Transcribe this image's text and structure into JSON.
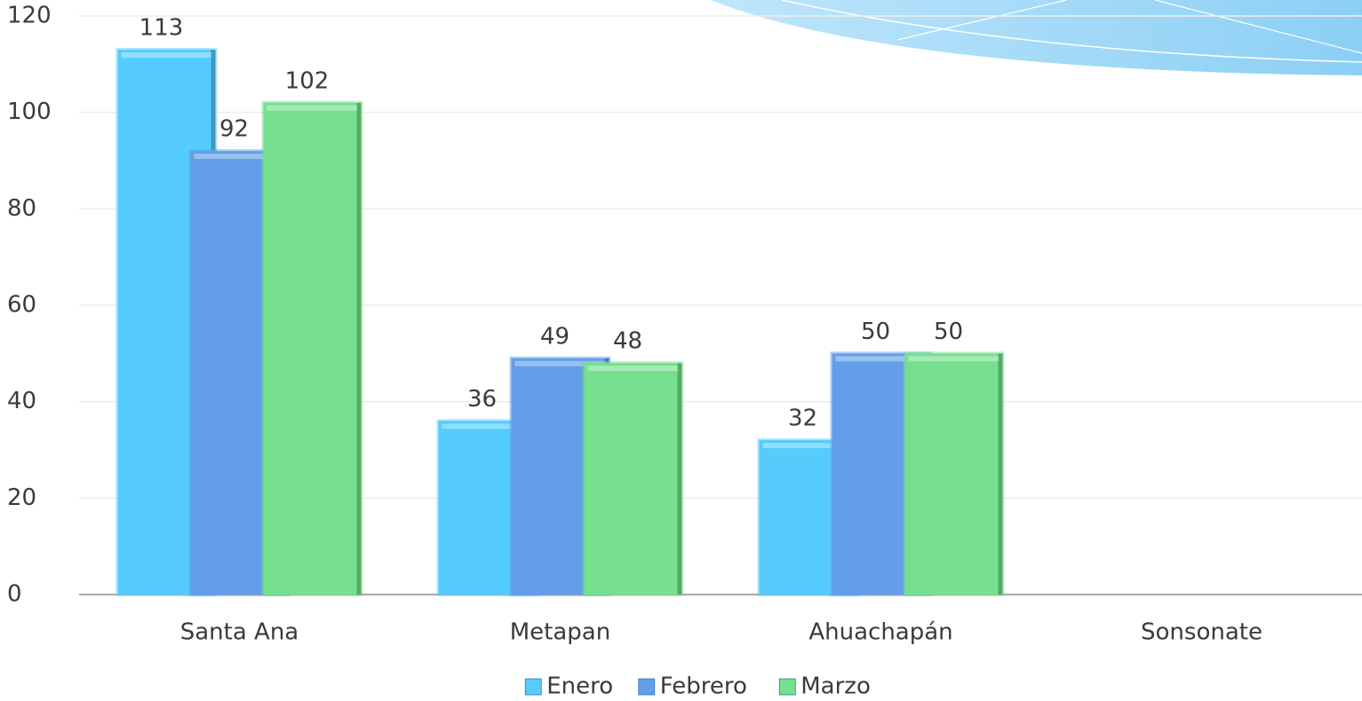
{
  "chart_data": {
    "type": "bar",
    "categories": [
      "Santa Ana",
      "Metapan",
      "Ahuachapán",
      "Sonsonate"
    ],
    "series": [
      {
        "name": "Enero",
        "color": "#55ccfc",
        "values": [
          113,
          36,
          32,
          null
        ]
      },
      {
        "name": "Febrero",
        "color": "#629fe8",
        "values": [
          92,
          49,
          50,
          null
        ]
      },
      {
        "name": "Marzo",
        "color": "#76e08e",
        "values": [
          102,
          48,
          50,
          null
        ]
      }
    ],
    "ylim": [
      0,
      120
    ],
    "yticks": [
      0,
      20,
      40,
      60,
      80,
      100,
      120
    ],
    "grid": true,
    "legend": "bottom"
  }
}
